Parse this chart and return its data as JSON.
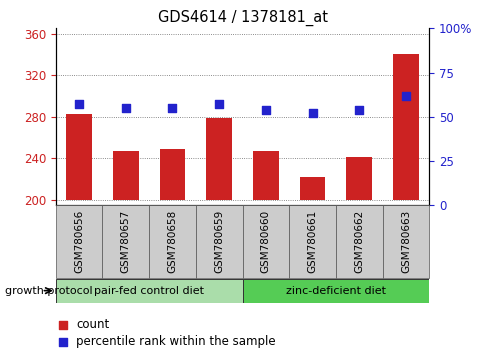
{
  "title": "GDS4614 / 1378181_at",
  "samples": [
    "GSM780656",
    "GSM780657",
    "GSM780658",
    "GSM780659",
    "GSM780660",
    "GSM780661",
    "GSM780662",
    "GSM780663"
  ],
  "bar_values": [
    283,
    247,
    249,
    279,
    247,
    222,
    241,
    340
  ],
  "dot_values": [
    57,
    55,
    55,
    57,
    54,
    52,
    54,
    62
  ],
  "bar_color": "#cc2222",
  "dot_color": "#2222cc",
  "ylim_left": [
    195,
    365
  ],
  "ylim_right": [
    0,
    100
  ],
  "yticks_left": [
    200,
    240,
    280,
    320,
    360
  ],
  "yticks_right": [
    0,
    25,
    50,
    75,
    100
  ],
  "group1_label": "pair-fed control diet",
  "group2_label": "zinc-deficient diet",
  "group1_color": "#aaddaa",
  "group2_color": "#55cc55",
  "protocol_label": "growth protocol",
  "legend_count": "count",
  "legend_pct": "percentile rank within the sample",
  "grid_color": "#666666",
  "left_tick_color": "#cc2222",
  "right_tick_color": "#2222cc",
  "bar_bottom": 200,
  "bg_color": "#ffffff",
  "label_box_color": "#cccccc",
  "n_group1": 4,
  "n_group2": 4
}
